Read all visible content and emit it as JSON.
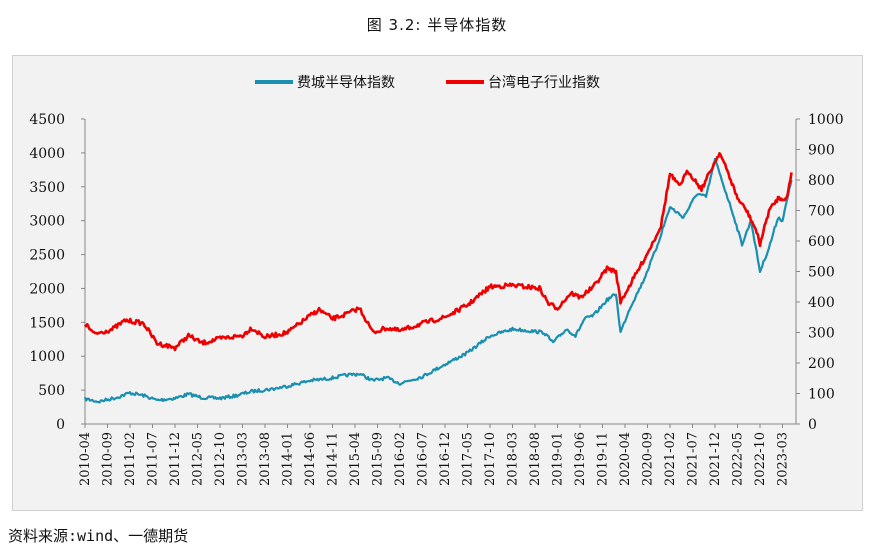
{
  "figure_title": "图 3.2: 半导体指数",
  "source": "资料来源:wind、一德期货",
  "chart_data": {
    "type": "line",
    "title": "",
    "legend": {
      "placement": "top-center"
    },
    "grid": false,
    "x_tick_labels": [
      "2010-04",
      "2010-09",
      "2011-02",
      "2011-07",
      "2011-12",
      "2012-05",
      "2012-10",
      "2013-03",
      "2013-08",
      "2014-01",
      "2014-06",
      "2014-11",
      "2015-04",
      "2015-09",
      "2016-02",
      "2016-07",
      "2016-12",
      "2017-05",
      "2017-10",
      "2018-03",
      "2018-08",
      "2019-01",
      "2019-06",
      "2019-11",
      "2020-04",
      "2020-09",
      "2021-02",
      "2021-07",
      "2021-12",
      "2022-05",
      "2022-10",
      "2023-03"
    ],
    "y_left": {
      "ylim": [
        0,
        4500
      ],
      "ticks": [
        "0",
        "500",
        "1000",
        "1500",
        "2000",
        "2500",
        "3000",
        "3500",
        "4000",
        "4500"
      ]
    },
    "y_right": {
      "ylim": [
        0,
        1000
      ],
      "ticks": [
        "0",
        "100",
        "200",
        "300",
        "400",
        "500",
        "600",
        "700",
        "800",
        "900",
        "1000"
      ]
    },
    "series": [
      {
        "name": "费城半导体指数",
        "axis": "left",
        "color": "#1a8fb0",
        "values": [
          {
            "date": "2010-04",
            "value": 370
          },
          {
            "date": "2010-07",
            "value": 330
          },
          {
            "date": "2010-11",
            "value": 390
          },
          {
            "date": "2011-02",
            "value": 460
          },
          {
            "date": "2011-05",
            "value": 420
          },
          {
            "date": "2011-08",
            "value": 350
          },
          {
            "date": "2011-12",
            "value": 380
          },
          {
            "date": "2012-03",
            "value": 440
          },
          {
            "date": "2012-06",
            "value": 390
          },
          {
            "date": "2012-10",
            "value": 380
          },
          {
            "date": "2013-01",
            "value": 410
          },
          {
            "date": "2013-05",
            "value": 480
          },
          {
            "date": "2013-10",
            "value": 520
          },
          {
            "date": "2014-01",
            "value": 560
          },
          {
            "date": "2014-06",
            "value": 640
          },
          {
            "date": "2014-09",
            "value": 660
          },
          {
            "date": "2014-11",
            "value": 680
          },
          {
            "date": "2015-02",
            "value": 720
          },
          {
            "date": "2015-05",
            "value": 740
          },
          {
            "date": "2015-08",
            "value": 640
          },
          {
            "date": "2015-11",
            "value": 680
          },
          {
            "date": "2016-02",
            "value": 600
          },
          {
            "date": "2016-07",
            "value": 700
          },
          {
            "date": "2016-12",
            "value": 880
          },
          {
            "date": "2017-05",
            "value": 1050
          },
          {
            "date": "2017-10",
            "value": 1300
          },
          {
            "date": "2018-03",
            "value": 1400
          },
          {
            "date": "2018-06",
            "value": 1380
          },
          {
            "date": "2018-10",
            "value": 1350
          },
          {
            "date": "2018-12",
            "value": 1200
          },
          {
            "date": "2019-03",
            "value": 1400
          },
          {
            "date": "2019-05",
            "value": 1300
          },
          {
            "date": "2019-07",
            "value": 1550
          },
          {
            "date": "2019-09",
            "value": 1600
          },
          {
            "date": "2019-12",
            "value": 1830
          },
          {
            "date": "2020-02",
            "value": 1920
          },
          {
            "date": "2020-03",
            "value": 1350
          },
          {
            "date": "2020-05",
            "value": 1700
          },
          {
            "date": "2020-08",
            "value": 2100
          },
          {
            "date": "2020-11",
            "value": 2600
          },
          {
            "date": "2021-02",
            "value": 3200
          },
          {
            "date": "2021-05",
            "value": 3050
          },
          {
            "date": "2021-08",
            "value": 3400
          },
          {
            "date": "2021-10",
            "value": 3350
          },
          {
            "date": "2021-12",
            "value": 3900
          },
          {
            "date": "2022-02",
            "value": 3500
          },
          {
            "date": "2022-04",
            "value": 3100
          },
          {
            "date": "2022-06",
            "value": 2650
          },
          {
            "date": "2022-08",
            "value": 3000
          },
          {
            "date": "2022-10",
            "value": 2250
          },
          {
            "date": "2022-12",
            "value": 2600
          },
          {
            "date": "2023-02",
            "value": 3050
          },
          {
            "date": "2023-03",
            "value": 3000
          },
          {
            "date": "2023-05",
            "value": 3600
          }
        ]
      },
      {
        "name": "台湾电子行业指数",
        "axis": "right",
        "color": "#ee0000",
        "values": [
          {
            "date": "2010-04",
            "value": 330
          },
          {
            "date": "2010-06",
            "value": 295
          },
          {
            "date": "2010-10",
            "value": 310
          },
          {
            "date": "2011-01",
            "value": 340
          },
          {
            "date": "2011-05",
            "value": 330
          },
          {
            "date": "2011-08",
            "value": 265
          },
          {
            "date": "2011-12",
            "value": 250
          },
          {
            "date": "2012-03",
            "value": 290
          },
          {
            "date": "2012-06",
            "value": 265
          },
          {
            "date": "2012-10",
            "value": 280
          },
          {
            "date": "2013-03",
            "value": 290
          },
          {
            "date": "2013-05",
            "value": 315
          },
          {
            "date": "2013-08",
            "value": 285
          },
          {
            "date": "2014-01",
            "value": 300
          },
          {
            "date": "2014-06",
            "value": 355
          },
          {
            "date": "2014-08",
            "value": 375
          },
          {
            "date": "2014-11",
            "value": 345
          },
          {
            "date": "2015-02",
            "value": 360
          },
          {
            "date": "2015-05",
            "value": 380
          },
          {
            "date": "2015-08",
            "value": 300
          },
          {
            "date": "2015-11",
            "value": 315
          },
          {
            "date": "2016-02",
            "value": 305
          },
          {
            "date": "2016-07",
            "value": 330
          },
          {
            "date": "2016-12",
            "value": 350
          },
          {
            "date": "2017-05",
            "value": 390
          },
          {
            "date": "2017-10",
            "value": 450
          },
          {
            "date": "2018-03",
            "value": 455
          },
          {
            "date": "2018-06",
            "value": 450
          },
          {
            "date": "2018-09",
            "value": 445
          },
          {
            "date": "2018-11",
            "value": 395
          },
          {
            "date": "2019-01",
            "value": 380
          },
          {
            "date": "2019-04",
            "value": 430
          },
          {
            "date": "2019-06",
            "value": 415
          },
          {
            "date": "2019-09",
            "value": 450
          },
          {
            "date": "2019-12",
            "value": 510
          },
          {
            "date": "2020-02",
            "value": 500
          },
          {
            "date": "2020-03",
            "value": 400
          },
          {
            "date": "2020-06",
            "value": 480
          },
          {
            "date": "2020-09",
            "value": 560
          },
          {
            "date": "2020-12",
            "value": 650
          },
          {
            "date": "2021-02",
            "value": 820
          },
          {
            "date": "2021-04",
            "value": 780
          },
          {
            "date": "2021-06",
            "value": 830
          },
          {
            "date": "2021-09",
            "value": 770
          },
          {
            "date": "2021-12",
            "value": 860
          },
          {
            "date": "2022-01",
            "value": 890
          },
          {
            "date": "2022-03",
            "value": 820
          },
          {
            "date": "2022-05",
            "value": 740
          },
          {
            "date": "2022-07",
            "value": 700
          },
          {
            "date": "2022-09",
            "value": 640
          },
          {
            "date": "2022-10",
            "value": 590
          },
          {
            "date": "2022-12",
            "value": 700
          },
          {
            "date": "2023-02",
            "value": 740
          },
          {
            "date": "2023-04",
            "value": 740
          },
          {
            "date": "2023-05",
            "value": 825
          }
        ]
      }
    ]
  }
}
